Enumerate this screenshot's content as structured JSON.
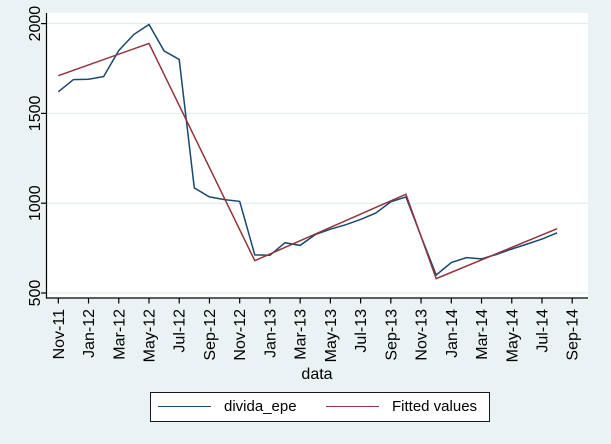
{
  "figure": {
    "background_color": "#eaf2f3",
    "plot_background_color": "#ffffff",
    "grid_color": "#dde9ec",
    "axis_color": "#000000"
  },
  "chart_data": {
    "type": "line",
    "title": "",
    "xlabel": "data",
    "ylabel": "",
    "grid": true,
    "legend_position": "bottom-center",
    "y_ticks": [
      500,
      1000,
      1500,
      2000
    ],
    "ylim": [
      470,
      2060
    ],
    "x_tick_labels": [
      "Nov-11",
      "Jan-12",
      "Mar-12",
      "May-12",
      "Jul-12",
      "Sep-12",
      "Nov-12",
      "Jan-13",
      "Mar-13",
      "May-13",
      "Jul-13",
      "Sep-13",
      "Nov-13",
      "Jan-14",
      "Mar-14",
      "May-14",
      "Jul-14",
      "Sep-14"
    ],
    "x_months": [
      "Nov-11",
      "Dec-11",
      "Jan-12",
      "Feb-12",
      "Mar-12",
      "Apr-12",
      "May-12",
      "Jun-12",
      "Jul-12",
      "Aug-12",
      "Sep-12",
      "Oct-12",
      "Nov-12",
      "Dec-12",
      "Jan-13",
      "Feb-13",
      "Mar-13",
      "Apr-13",
      "May-13",
      "Jun-13",
      "Jul-13",
      "Aug-13",
      "Sep-13",
      "Oct-13",
      "Nov-13",
      "Dec-13",
      "Jan-14",
      "Feb-14",
      "Mar-14",
      "Apr-14",
      "May-14",
      "Jun-14",
      "Jul-14",
      "Aug-14"
    ],
    "series": [
      {
        "name": "divida_epe",
        "color": "#1a476f",
        "values": [
          1620,
          1688,
          1690,
          1705,
          1850,
          1940,
          1995,
          1848,
          1800,
          1085,
          1035,
          1020,
          1010,
          712,
          710,
          780,
          765,
          825,
          855,
          880,
          910,
          945,
          1008,
          1035,
          815,
          600,
          670,
          697,
          690,
          715,
          745,
          772,
          800,
          835
        ]
      },
      {
        "name": "Fitted values",
        "color": "#90353b",
        "breakpoint_month_index": [
          0,
          6,
          13,
          23,
          25,
          33
        ],
        "breakpoint_values": [
          1710,
          1890,
          680,
          1050,
          580,
          858
        ]
      }
    ]
  }
}
